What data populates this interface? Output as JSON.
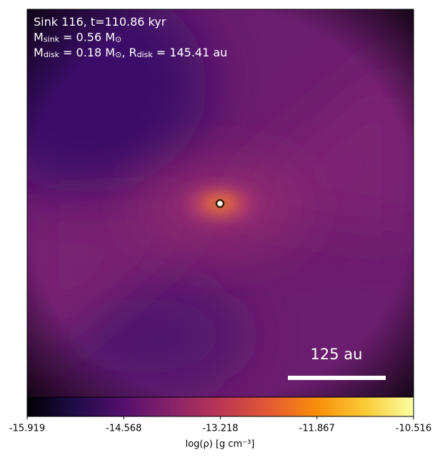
{
  "chart_data": {
    "type": "image",
    "annotations": [
      [
        {
          "text": "Sink 116, t=110.86 kyr"
        }
      ],
      [
        {
          "text": "M"
        },
        {
          "sub": "sink"
        },
        {
          "text": " = 0.56 M"
        },
        {
          "sub": "⊙"
        }
      ],
      [
        {
          "text": "M"
        },
        {
          "sub": "disk"
        },
        {
          "text": " = 0.18 M"
        },
        {
          "sub": "⊙"
        },
        {
          "text": ", R"
        },
        {
          "sub": "disk"
        },
        {
          "text": " = 145.41 au"
        }
      ]
    ],
    "scale_bar": {
      "label": "125 au"
    },
    "colormap": "inferno",
    "colorbar": {
      "label": "log(ρ) [g cm⁻³]",
      "clim": [
        -15.919,
        -10.516
      ],
      "ticks": [
        -15.919,
        -14.568,
        -13.218,
        -11.867,
        -10.516
      ]
    }
  }
}
